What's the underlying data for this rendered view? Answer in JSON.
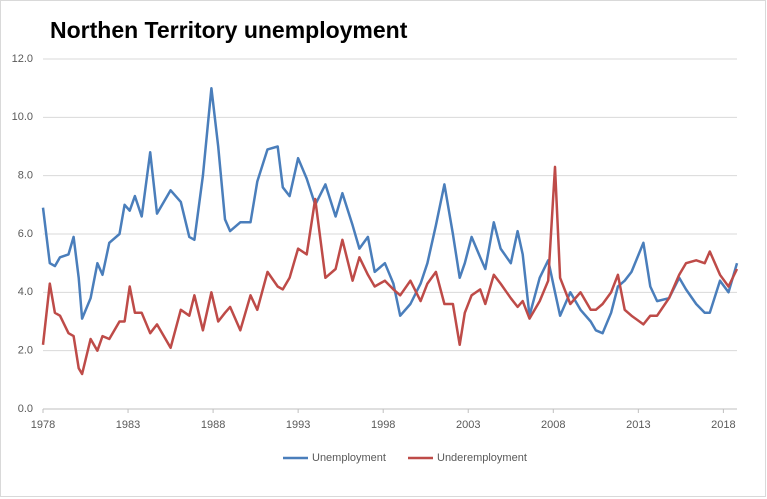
{
  "chart_data": {
    "type": "line",
    "title": "Northen Territory unemployment",
    "x": [
      1978.0,
      1978.4,
      1978.7,
      1979.0,
      1979.5,
      1979.8,
      1980.1,
      1980.3,
      1980.8,
      1981.2,
      1981.5,
      1981.9,
      1982.5,
      1982.8,
      1983.1,
      1983.4,
      1983.8,
      1984.3,
      1984.7,
      1985.5,
      1986.1,
      1986.6,
      1986.9,
      1987.4,
      1987.9,
      1988.3,
      1988.7,
      1989.0,
      1989.6,
      1990.2,
      1990.6,
      1991.2,
      1991.8,
      1992.1,
      1992.5,
      1993.0,
      1993.5,
      1994.0,
      1994.6,
      1995.2,
      1995.6,
      1996.2,
      1996.6,
      1997.1,
      1997.5,
      1998.1,
      1998.6,
      1999.0,
      1999.6,
      2000.2,
      2000.6,
      2001.1,
      2001.6,
      2002.1,
      2002.5,
      2002.8,
      2003.2,
      2003.7,
      2004.0,
      2004.5,
      2004.9,
      2005.5,
      2005.9,
      2006.2,
      2006.6,
      2007.2,
      2007.7,
      2008.1,
      2008.4,
      2009.0,
      2009.6,
      2010.2,
      2010.5,
      2010.9,
      2011.4,
      2011.8,
      2012.2,
      2012.6,
      2013.3,
      2013.7,
      2014.1,
      2014.8,
      2015.4,
      2015.8,
      2016.4,
      2016.9,
      2017.2,
      2017.8,
      2018.3,
      2018.8
    ],
    "series": [
      {
        "name": "Unemployment",
        "color": "#4a7ebb",
        "values": [
          6.9,
          5.0,
          4.9,
          5.2,
          5.3,
          5.9,
          4.5,
          3.1,
          3.8,
          5.0,
          4.6,
          5.7,
          6.0,
          7.0,
          6.8,
          7.3,
          6.6,
          8.8,
          6.7,
          7.5,
          7.1,
          5.9,
          5.8,
          8.0,
          11.0,
          9.0,
          6.5,
          6.1,
          6.4,
          6.4,
          7.8,
          8.9,
          9.0,
          7.6,
          7.3,
          8.6,
          7.9,
          7.0,
          7.7,
          6.6,
          7.4,
          6.3,
          5.5,
          5.9,
          4.7,
          5.0,
          4.3,
          3.2,
          3.6,
          4.3,
          5.0,
          6.3,
          7.7,
          6.0,
          4.5,
          5.0,
          5.9,
          5.2,
          4.8,
          6.4,
          5.5,
          5.0,
          6.1,
          5.3,
          3.2,
          4.5,
          5.1,
          4.0,
          3.2,
          4.0,
          3.4,
          3.0,
          2.7,
          2.6,
          3.3,
          4.2,
          4.4,
          4.7,
          5.7,
          4.2,
          3.7,
          3.8,
          4.5,
          4.1,
          3.6,
          3.3,
          3.3,
          4.4,
          4.0,
          5.0
        ]
      },
      {
        "name": "Underemployment",
        "color": "#be4b48",
        "values": [
          2.2,
          4.3,
          3.3,
          3.2,
          2.6,
          2.5,
          1.4,
          1.2,
          2.4,
          2.0,
          2.5,
          2.4,
          3.0,
          3.0,
          4.2,
          3.3,
          3.3,
          2.6,
          2.9,
          2.1,
          3.4,
          3.2,
          3.9,
          2.7,
          4.0,
          3.0,
          3.3,
          3.5,
          2.7,
          3.9,
          3.4,
          4.7,
          4.2,
          4.1,
          4.5,
          5.5,
          5.3,
          7.2,
          4.5,
          4.8,
          5.8,
          4.4,
          5.2,
          4.6,
          4.2,
          4.4,
          4.1,
          3.9,
          4.4,
          3.7,
          4.3,
          4.7,
          3.6,
          3.6,
          2.2,
          3.3,
          3.9,
          4.1,
          3.6,
          4.6,
          4.3,
          3.8,
          3.5,
          3.7,
          3.1,
          3.7,
          4.4,
          8.3,
          4.5,
          3.6,
          4.0,
          3.4,
          3.4,
          3.6,
          4.0,
          4.6,
          3.4,
          3.2,
          2.9,
          3.2,
          3.2,
          3.8,
          4.6,
          5.0,
          5.1,
          5.0,
          5.4,
          4.6,
          4.2,
          4.8
        ]
      }
    ],
    "xlim": [
      1978,
      2018.8
    ],
    "xticks": [
      1978,
      1983,
      1988,
      1993,
      1998,
      2003,
      2008,
      2013,
      2018
    ],
    "ylim": [
      0,
      12
    ],
    "yticks": [
      {
        "value": 0,
        "label": "0.0"
      },
      {
        "value": 2,
        "label": "2.0"
      },
      {
        "value": 4,
        "label": "4.0"
      },
      {
        "value": 6,
        "label": "6.0"
      },
      {
        "value": 8,
        "label": "8.0"
      },
      {
        "value": 10,
        "label": "10.0"
      },
      {
        "value": 12,
        "label": "12.0"
      }
    ],
    "grid": true,
    "legend": "bottom"
  }
}
